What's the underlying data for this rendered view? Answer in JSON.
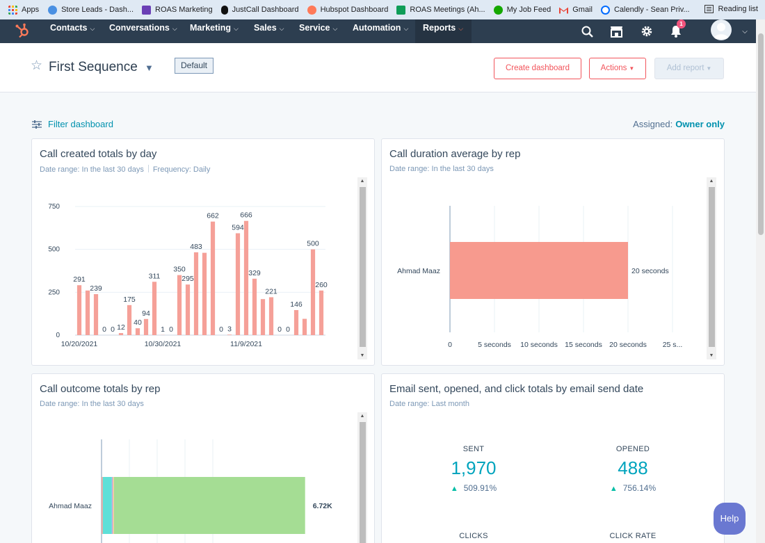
{
  "bookmarks": {
    "items": [
      {
        "label": "Apps",
        "icon": "apps-grid-icon",
        "color": "#ea4335"
      },
      {
        "label": "Store Leads - Dash...",
        "icon": "store-leads-icon",
        "color": "#4a90e2"
      },
      {
        "label": "ROAS Marketing",
        "icon": "roas-icon",
        "color": "#6a3fb5"
      },
      {
        "label": "JustCall Dashboard",
        "icon": "tiktok-icon",
        "color": "#111111"
      },
      {
        "label": "Hubspot Dashboard",
        "icon": "hubspot-icon",
        "color": "#ff7a59"
      },
      {
        "label": "ROAS Meetings (Ah...",
        "icon": "sheets-icon",
        "color": "#0f9d58"
      },
      {
        "label": "My Job Feed",
        "icon": "upwork-icon",
        "color": "#14a800"
      },
      {
        "label": "Gmail",
        "icon": "gmail-icon",
        "color": "#ea4335"
      },
      {
        "label": "Calendly - Sean Priv...",
        "icon": "calendly-icon",
        "color": "#006bff"
      }
    ],
    "reading_list": "Reading list"
  },
  "nav": {
    "items": [
      "Contacts",
      "Conversations",
      "Marketing",
      "Sales",
      "Service",
      "Automation",
      "Reports"
    ],
    "active": "Reports",
    "notification_count": "1"
  },
  "header": {
    "title": "First Sequence",
    "badge": "Default",
    "create_dashboard": "Create dashboard",
    "actions": "Actions",
    "add_report": "Add report"
  },
  "filter": {
    "label": "Filter dashboard",
    "assigned_label": "Assigned:",
    "assigned_value": "Owner only"
  },
  "cards": {
    "c1": {
      "title": "Call created totals by day",
      "sub1": "Date range: In the last 30 days",
      "sub2": "Frequency: Daily"
    },
    "c2": {
      "title": "Call duration average by rep",
      "sub1": "Date range: In the last 30 days"
    },
    "c3": {
      "title": "Call outcome totals by rep",
      "sub1": "Date range: In the last 30 days"
    },
    "c4": {
      "title": "Email sent, opened, and click totals by email send date",
      "sub1": "Date range: Last month",
      "stats": [
        {
          "label": "SENT",
          "value": "1,970",
          "change": "509.91%"
        },
        {
          "label": "OPENED",
          "value": "488",
          "change": "756.14%"
        }
      ],
      "stats_more": [
        "CLICKS",
        "CLICK RATE"
      ]
    }
  },
  "help": "Help",
  "chart_data": [
    {
      "type": "bar",
      "title": "Call created totals by day",
      "color": "#f5a098",
      "ylim": [
        0,
        750
      ],
      "yticks": [
        0,
        250,
        500,
        750
      ],
      "xtick_labels": [
        {
          "index": 0,
          "label": "10/20/2021"
        },
        {
          "index": 10,
          "label": "10/30/2021"
        },
        {
          "index": 20,
          "label": "11/9/2021"
        }
      ],
      "values": [
        291,
        260,
        239,
        0,
        0,
        12,
        175,
        40,
        94,
        311,
        1,
        0,
        350,
        295,
        483,
        480,
        662,
        0,
        3,
        594,
        666,
        329,
        210,
        221,
        0,
        0,
        146,
        95,
        500,
        260
      ],
      "data_labels": [
        {
          "index": 0,
          "label": "291"
        },
        {
          "index": 2,
          "label": "239"
        },
        {
          "index": 3,
          "label": "0"
        },
        {
          "index": 4,
          "label": "0"
        },
        {
          "index": 5,
          "label": "12"
        },
        {
          "index": 6,
          "label": "175"
        },
        {
          "index": 7,
          "label": "40"
        },
        {
          "index": 8,
          "label": "94"
        },
        {
          "index": 9,
          "label": "311"
        },
        {
          "index": 10,
          "label": "1"
        },
        {
          "index": 11,
          "label": "0"
        },
        {
          "index": 12,
          "label": "350"
        },
        {
          "index": 13,
          "label": "295"
        },
        {
          "index": 14,
          "label": "483"
        },
        {
          "index": 16,
          "label": "662"
        },
        {
          "index": 17,
          "label": "0"
        },
        {
          "index": 18,
          "label": "3"
        },
        {
          "index": 19,
          "label": "594"
        },
        {
          "index": 20,
          "label": "666"
        },
        {
          "index": 21,
          "label": "329"
        },
        {
          "index": 23,
          "label": "221"
        },
        {
          "index": 24,
          "label": "0"
        },
        {
          "index": 25,
          "label": "0"
        },
        {
          "index": 26,
          "label": "146"
        },
        {
          "index": 28,
          "label": "500"
        },
        {
          "index": 29,
          "label": "260"
        }
      ]
    },
    {
      "type": "bar",
      "orientation": "horizontal",
      "title": "Call duration average by rep",
      "color": "#f79a8e",
      "categories": [
        "Ahmad Maaz"
      ],
      "values": [
        20
      ],
      "data_labels": [
        "20 seconds"
      ],
      "xlim": [
        0,
        25
      ],
      "xticks": [
        "0",
        "5 seconds",
        "10 seconds",
        "15 seconds",
        "20 seconds",
        "25 s..."
      ]
    },
    {
      "type": "bar",
      "orientation": "horizontal",
      "stacked": true,
      "title": "Call outcome totals by rep",
      "categories": [
        "Ahmad Maaz"
      ],
      "series": [
        {
          "name": "segment-1",
          "color": "#f5a098",
          "values": [
            0.04
          ]
        },
        {
          "name": "segment-2",
          "color": "#5ee0d8",
          "values": [
            0.3
          ]
        },
        {
          "name": "segment-3",
          "color": "#b7a5e3",
          "values": [
            0.03
          ]
        },
        {
          "name": "segment-4",
          "color": "#f6c59a",
          "values": [
            0.04
          ]
        },
        {
          "name": "segment-5",
          "color": "#a5dd94",
          "values": [
            6.31
          ]
        }
      ],
      "total_label": "6.72K",
      "xlim": [
        0,
        9
      ]
    }
  ]
}
